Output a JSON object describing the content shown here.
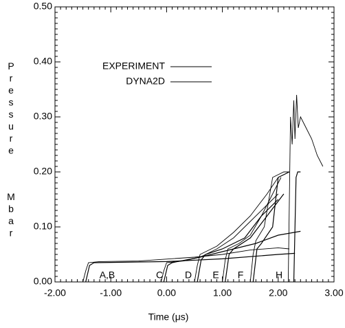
{
  "chart_data": {
    "type": "line",
    "x_label": "Time (μs)",
    "y_label": [
      "Pressure",
      "Mbar"
    ],
    "xlim": [
      -2,
      3
    ],
    "ylim": [
      0,
      0.5
    ],
    "xticks": [
      {
        "value": -2,
        "label": "-2.00"
      },
      {
        "value": -1,
        "label": "-1.00"
      },
      {
        "value": 0,
        "label": "0.00"
      },
      {
        "value": 1,
        "label": "1.00"
      },
      {
        "value": 2,
        "label": "2.00"
      },
      {
        "value": 3,
        "label": "3.00"
      }
    ],
    "yticks": [
      {
        "value": 0,
        "label": "0.00"
      },
      {
        "value": 0.1,
        "label": "0.10"
      },
      {
        "value": 0.2,
        "label": "0.20"
      },
      {
        "value": 0.3,
        "label": "0.30"
      },
      {
        "value": 0.4,
        "label": "0.40"
      },
      {
        "value": 0.5,
        "label": "0.50"
      }
    ],
    "annotations": [
      "A,B",
      "C",
      "D",
      "E",
      "F",
      "H"
    ],
    "series": [
      {
        "name": "EXPERIMENT",
        "color": "#000000",
        "lines": [
          {
            "x": [
              -1.5,
              -1.45,
              -1.4,
              -1.2,
              -0.5,
              0.5,
              1.0,
              1.5,
              2.0,
              2.2
            ],
            "values": [
              0,
              0.02,
              0.035,
              0.037,
              0.038,
              0.045,
              0.05,
              0.058,
              0.062,
              0.06
            ]
          },
          {
            "x": [
              -0.1,
              -0.05,
              0.0,
              0.3,
              0.6,
              0.9,
              1.2,
              1.5,
              1.8,
              2.0
            ],
            "values": [
              0,
              0.02,
              0.035,
              0.038,
              0.045,
              0.06,
              0.08,
              0.11,
              0.14,
              0.16
            ]
          },
          {
            "x": [
              0.5,
              0.55,
              0.6,
              0.9,
              1.2,
              1.5,
              1.8,
              2.0
            ],
            "values": [
              0,
              0.03,
              0.05,
              0.065,
              0.09,
              0.12,
              0.16,
              0.19
            ]
          },
          {
            "x": [
              1.0,
              1.05,
              1.1,
              1.3,
              1.5,
              1.7,
              1.9,
              2.05
            ],
            "values": [
              0,
              0.04,
              0.06,
              0.07,
              0.085,
              0.12,
              0.16,
              0.19
            ]
          },
          {
            "x": [
              1.5,
              1.55,
              1.6,
              1.75,
              1.9,
              2.0,
              2.1,
              2.2
            ],
            "values": [
              0,
              0.05,
              0.075,
              0.1,
              0.19,
              0.195,
              0.2,
              0.2
            ]
          },
          {
            "x": [
              2.18,
              2.22,
              2.25,
              2.28,
              2.3,
              2.33,
              2.36,
              2.4,
              2.5,
              2.6,
              2.7,
              2.8
            ],
            "values": [
              0,
              0.3,
              0.25,
              0.33,
              0.26,
              0.34,
              0.28,
              0.3,
              0.28,
              0.26,
              0.23,
              0.21
            ]
          }
        ]
      },
      {
        "name": "DYNA2D",
        "color": "#000000",
        "lines": [
          {
            "x": [
              -1.45,
              -1.38,
              -1.3,
              0.0,
              1.0,
              2.0,
              2.3
            ],
            "values": [
              0,
              0.03,
              0.035,
              0.037,
              0.042,
              0.05,
              0.052
            ]
          },
          {
            "x": [
              -0.05,
              0.02,
              0.1,
              0.6,
              1.2,
              1.6,
              2.0,
              2.4
            ],
            "values": [
              0,
              0.03,
              0.035,
              0.045,
              0.06,
              0.07,
              0.085,
              0.092
            ]
          },
          {
            "x": [
              0.55,
              0.62,
              0.7,
              1.0,
              1.4,
              1.7,
              2.0
            ],
            "values": [
              0,
              0.04,
              0.05,
              0.06,
              0.08,
              0.12,
              0.15
            ]
          },
          {
            "x": [
              1.05,
              1.12,
              1.2,
              1.5,
              1.8,
              2.1
            ],
            "values": [
              0,
              0.05,
              0.06,
              0.08,
              0.12,
              0.16
            ]
          },
          {
            "x": [
              1.55,
              1.62,
              1.7,
              1.9,
              2.0,
              2.2
            ],
            "values": [
              0,
              0.06,
              0.07,
              0.1,
              0.19,
              0.2
            ]
          },
          {
            "x": [
              2.28,
              2.32,
              2.35,
              2.4
            ],
            "values": [
              0,
              0.19,
              0.2,
              0.2
            ]
          }
        ]
      }
    ]
  }
}
